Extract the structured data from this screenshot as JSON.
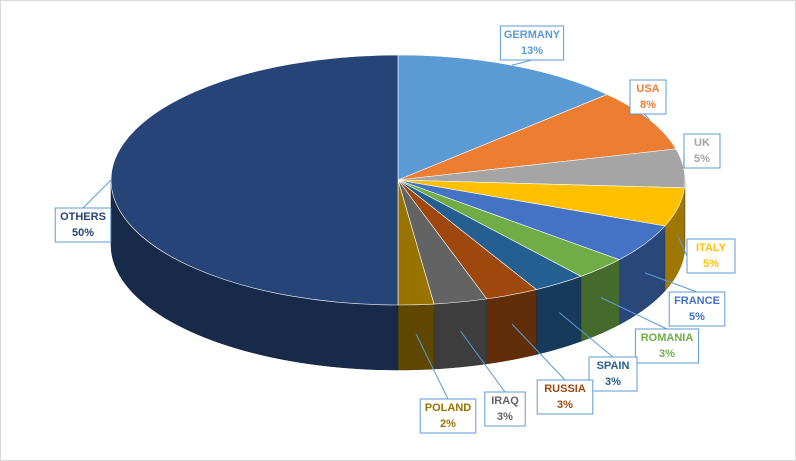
{
  "chart_data": {
    "type": "pie",
    "categories": [
      "GERMANY",
      "USA",
      "UK",
      "ITALY",
      "FRANCE",
      "ROMANIA",
      "SPAIN",
      "RUSSIA",
      "IRAQ",
      "POLAND",
      "OTHERS"
    ],
    "values": [
      13,
      8,
      5,
      5,
      5,
      3,
      3,
      3,
      3,
      2,
      50
    ],
    "value_labels": [
      "13%",
      "8%",
      "5%",
      "5%",
      "5%",
      "3%",
      "3%",
      "3%",
      "3%",
      "2%",
      "50%"
    ],
    "colors": [
      "#5b9bd5",
      "#ed7d31",
      "#a5a5a5",
      "#ffc000",
      "#4472c4",
      "#70ad47",
      "#255e91",
      "#9e480e",
      "#636363",
      "#997300",
      "#264478"
    ]
  }
}
